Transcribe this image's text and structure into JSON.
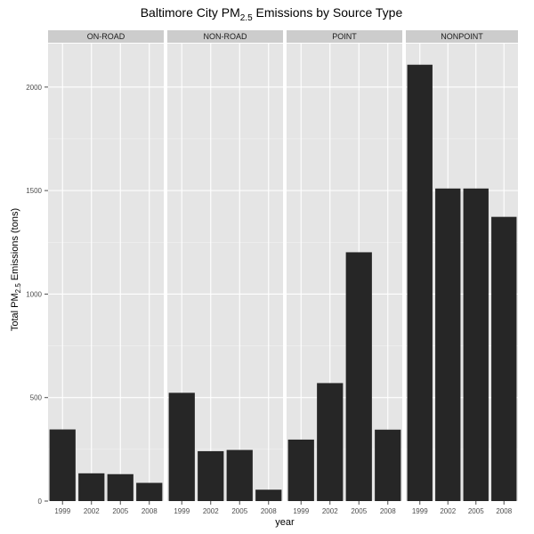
{
  "chart_data": {
    "type": "bar",
    "title": {
      "prefix": "Baltimore City PM",
      "subscript": "2.5",
      "suffix": " Emissions by Source Type"
    },
    "xlabel": "year",
    "ylabel": {
      "prefix": "Total PM",
      "subscript": "2.5",
      "suffix": " Emissions (tons)"
    },
    "ylim": [
      0,
      2210
    ],
    "y_ticks": [
      0,
      500,
      1000,
      1500,
      2000
    ],
    "y_tick_labels": [
      "0",
      "500",
      "1000",
      "1500",
      "2000"
    ],
    "categories": [
      "1999",
      "2002",
      "2005",
      "2008"
    ],
    "facets": [
      {
        "name": "ON-ROAD",
        "values": [
          346,
          134,
          130,
          88
        ]
      },
      {
        "name": "NON-ROAD",
        "values": [
          523,
          241,
          247,
          55
        ]
      },
      {
        "name": "POINT",
        "values": [
          297,
          570,
          1202,
          345
        ]
      },
      {
        "name": "NONPOINT",
        "values": [
          2108,
          1510,
          1510,
          1373
        ]
      }
    ],
    "grid": true,
    "bar_color": "#262626",
    "panel_color": "#e5e5e5",
    "strip_color": "#cccccc",
    "grid_color": "#ffffff"
  }
}
